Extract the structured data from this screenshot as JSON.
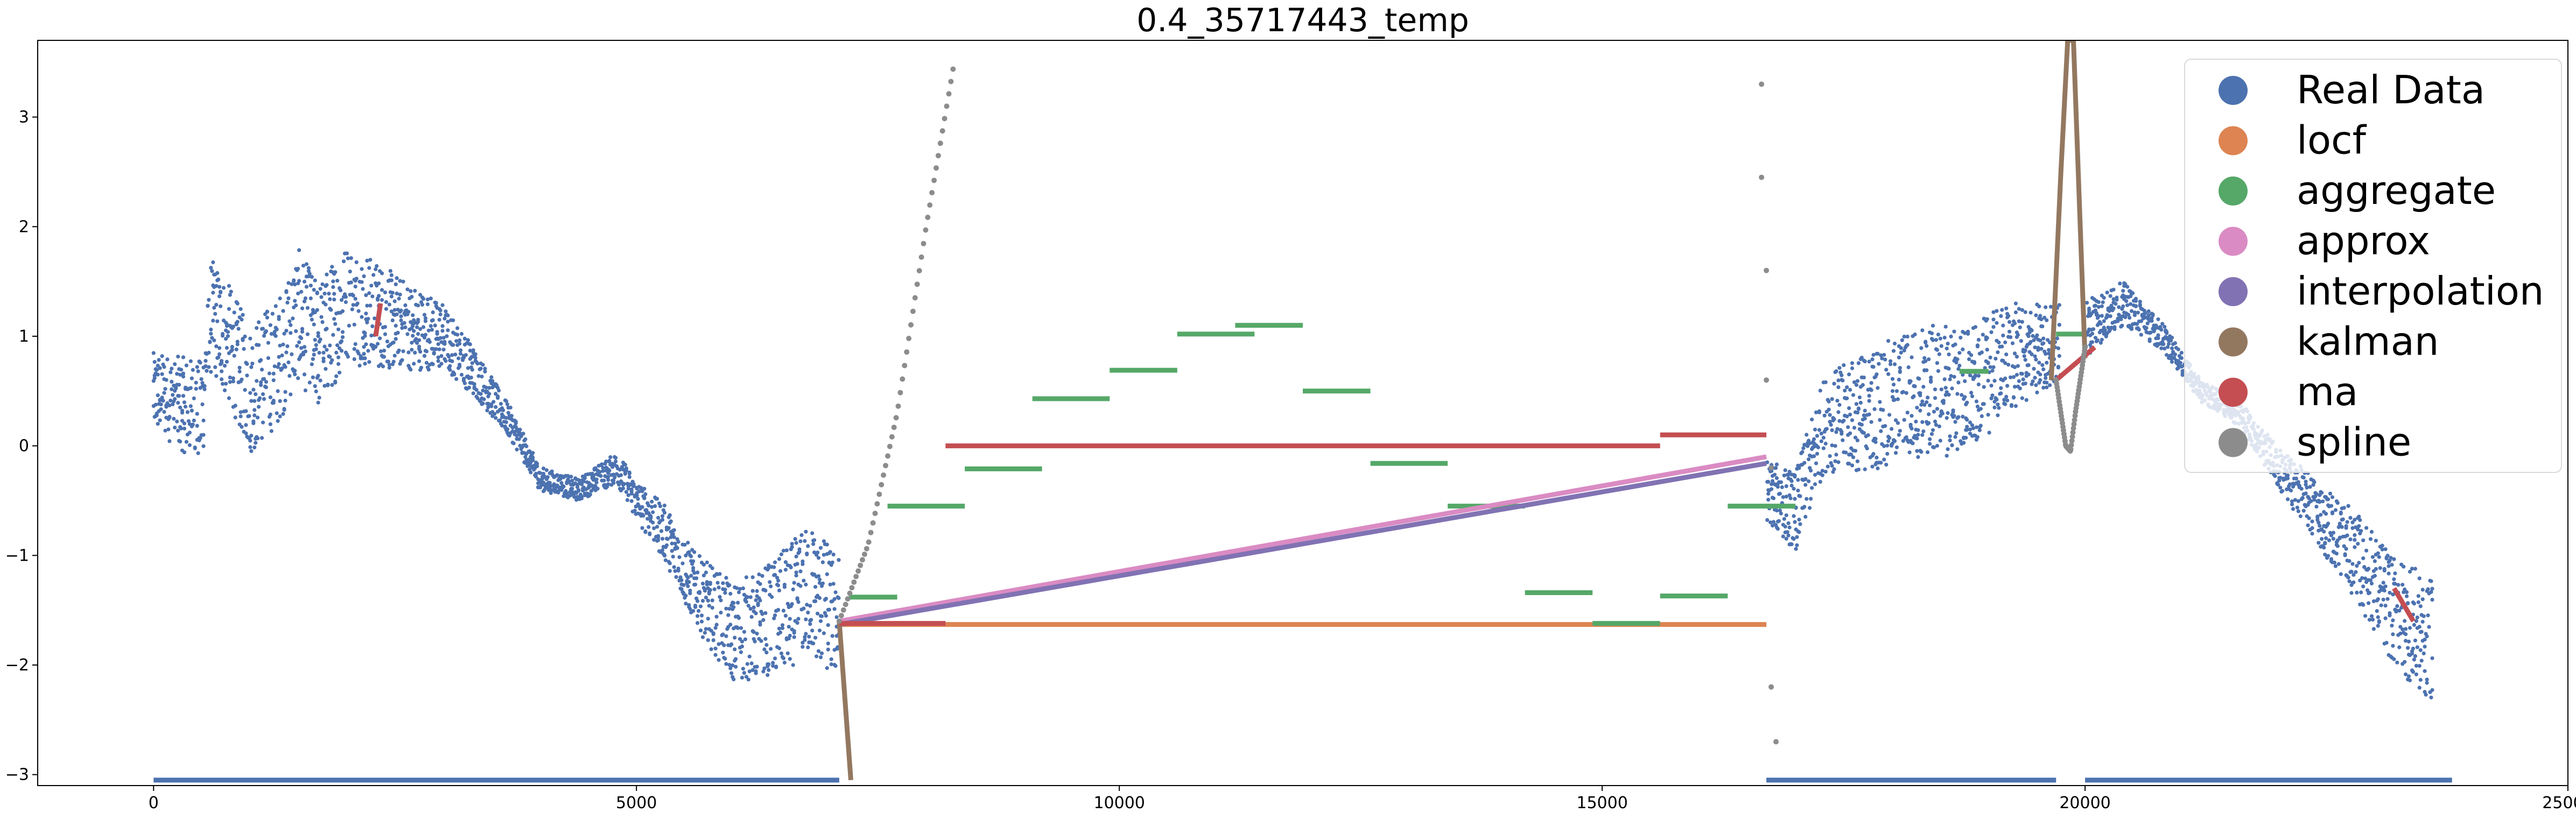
{
  "chart_data": {
    "type": "scatter",
    "title": "0.4_35717443_temp",
    "xlabel": "",
    "ylabel": "",
    "xlim": [
      -1200,
      25000
    ],
    "ylim": [
      -3.1,
      3.7
    ],
    "xticks": [
      0,
      5000,
      10000,
      15000,
      20000,
      25000
    ],
    "yticks": [
      -3,
      -2,
      -1,
      0,
      1,
      2,
      3
    ],
    "grid": false,
    "legend": {
      "position": "top-right",
      "entries": [
        {
          "name": "Real Data",
          "color": "#4c72b0"
        },
        {
          "name": "locf",
          "color": "#dd8452"
        },
        {
          "name": "aggregate",
          "color": "#55a868"
        },
        {
          "name": "approx",
          "color": "#da8bc3"
        },
        {
          "name": "interpolation",
          "color": "#8172b3"
        },
        {
          "name": "kalman",
          "color": "#937860"
        },
        {
          "name": "ma",
          "color": "#c44e52"
        },
        {
          "name": "spline",
          "color": "#8c8c8c"
        }
      ]
    },
    "series": [
      {
        "name": "Real Data",
        "color": "#4c72b0",
        "trend": [
          [
            0,
            0.5
          ],
          [
            500,
            0.3
          ],
          [
            600,
            1.2
          ],
          [
            800,
            0.9
          ],
          [
            1000,
            0.5
          ],
          [
            1300,
            0.8
          ],
          [
            1500,
            1.2
          ],
          [
            1700,
            0.9
          ],
          [
            2000,
            1.3
          ],
          [
            2300,
            1.2
          ],
          [
            2600,
            1.1
          ],
          [
            3000,
            1.0
          ],
          [
            3300,
            0.7
          ],
          [
            3700,
            0.2
          ],
          [
            4000,
            -0.3
          ],
          [
            4400,
            -0.4
          ],
          [
            4800,
            -0.2
          ],
          [
            5000,
            -0.5
          ],
          [
            5300,
            -0.8
          ],
          [
            5600,
            -1.3
          ],
          [
            6000,
            -1.7
          ],
          [
            6400,
            -1.6
          ],
          [
            6800,
            -1.3
          ],
          [
            7100,
            -1.6
          ],
          [
            16700,
            -0.4
          ],
          [
            17000,
            -0.6
          ],
          [
            17300,
            0.2
          ],
          [
            17700,
            0.3
          ],
          [
            18300,
            0.5
          ],
          [
            18800,
            0.5
          ],
          [
            19200,
            0.8
          ],
          [
            19600,
            0.9
          ],
          [
            20000,
            1.1
          ],
          [
            20400,
            1.3
          ],
          [
            20800,
            1.0
          ],
          [
            21200,
            0.5
          ],
          [
            21600,
            0.3
          ],
          [
            22000,
            -0.2
          ],
          [
            22400,
            -0.6
          ],
          [
            22800,
            -1.0
          ],
          [
            23200,
            -1.5
          ],
          [
            23600,
            -1.8
          ]
        ],
        "gaps": [
          [
            7100,
            16700
          ],
          [
            19750,
            20000
          ]
        ],
        "bottom_band_y": -3.05,
        "bottom_band_ranges": [
          [
            0,
            7100
          ],
          [
            16700,
            19700
          ],
          [
            20000,
            23800
          ]
        ]
      },
      {
        "name": "locf",
        "color": "#dd8452",
        "segments": [
          [
            [
              7100,
              -1.63
            ],
            [
              16700,
              -1.63
            ]
          ]
        ]
      },
      {
        "name": "aggregate",
        "color": "#55a868",
        "segments": [
          [
            [
              7200,
              -1.38
            ],
            [
              7700,
              -1.38
            ]
          ],
          [
            [
              7600,
              -0.55
            ],
            [
              8400,
              -0.55
            ]
          ],
          [
            [
              8400,
              -0.21
            ],
            [
              9200,
              -0.21
            ]
          ],
          [
            [
              9100,
              0.43
            ],
            [
              9900,
              0.43
            ]
          ],
          [
            [
              9900,
              0.69
            ],
            [
              10600,
              0.69
            ]
          ],
          [
            [
              10600,
              1.02
            ],
            [
              11400,
              1.02
            ]
          ],
          [
            [
              11200,
              1.1
            ],
            [
              11900,
              1.1
            ]
          ],
          [
            [
              11900,
              0.5
            ],
            [
              12600,
              0.5
            ]
          ],
          [
            [
              12600,
              -0.16
            ],
            [
              13400,
              -0.16
            ]
          ],
          [
            [
              13400,
              -0.55
            ],
            [
              14200,
              -0.55
            ]
          ],
          [
            [
              14200,
              -1.34
            ],
            [
              14900,
              -1.34
            ]
          ],
          [
            [
              14900,
              -1.62
            ],
            [
              15600,
              -1.62
            ]
          ],
          [
            [
              15600,
              -1.37
            ],
            [
              16300,
              -1.37
            ]
          ],
          [
            [
              16300,
              -0.55
            ],
            [
              17000,
              -0.55
            ]
          ],
          [
            [
              18700,
              0.68
            ],
            [
              19000,
              0.68
            ]
          ],
          [
            [
              19700,
              1.02
            ],
            [
              20000,
              1.02
            ]
          ]
        ]
      },
      {
        "name": "approx",
        "color": "#da8bc3",
        "segments": [
          [
            [
              7100,
              -1.6
            ],
            [
              16700,
              -0.1
            ]
          ]
        ]
      },
      {
        "name": "interpolation",
        "color": "#8172b3",
        "segments": [
          [
            [
              7100,
              -1.63
            ],
            [
              16700,
              -0.16
            ]
          ]
        ]
      },
      {
        "name": "kalman",
        "color": "#937860",
        "segments": [
          [
            [
              7100,
              -1.6
            ],
            [
              7220,
              -3.05
            ]
          ],
          [
            [
              19650,
              0.6
            ],
            [
              19750,
              2.5
            ],
            [
              19820,
              3.7
            ],
            [
              19880,
              3.7
            ],
            [
              19950,
              2.0
            ],
            [
              20000,
              0.8
            ]
          ]
        ]
      },
      {
        "name": "ma",
        "color": "#c44e52",
        "segments": [
          [
            [
              7100,
              -1.62
            ],
            [
              8200,
              -1.62
            ]
          ],
          [
            [
              8200,
              0.0
            ],
            [
              15600,
              0.0
            ]
          ],
          [
            [
              15600,
              0.1
            ],
            [
              16700,
              0.1
            ]
          ],
          [
            [
              19700,
              0.6
            ],
            [
              20100,
              0.9
            ]
          ],
          [
            [
              2300,
              1.0
            ],
            [
              2350,
              1.3
            ]
          ],
          [
            [
              23200,
              -1.3
            ],
            [
              23400,
              -1.6
            ]
          ]
        ]
      },
      {
        "name": "spline",
        "color": "#8c8c8c",
        "curves": [
          [
            [
              7100,
              -1.6
            ],
            [
              7400,
              -0.9
            ],
            [
              7700,
              0.3
            ],
            [
              8000,
              2.0
            ],
            [
              8300,
              3.55
            ]
          ],
          [
            [
              19700,
              0.6
            ],
            [
              19800,
              0.0
            ],
            [
              19850,
              -0.05
            ],
            [
              19900,
              0.3
            ],
            [
              20000,
              0.9
            ]
          ]
        ],
        "points": [
          [
            16650,
            3.3
          ],
          [
            16650,
            2.45
          ],
          [
            16700,
            1.6
          ],
          [
            16700,
            0.6
          ],
          [
            16750,
            -0.2
          ],
          [
            16750,
            -2.2
          ],
          [
            16800,
            -2.7
          ]
        ]
      }
    ]
  }
}
